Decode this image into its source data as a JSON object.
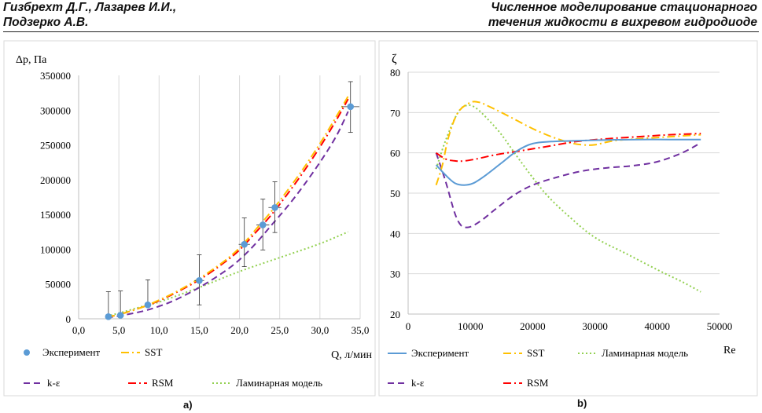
{
  "header": {
    "authors_line1": "Гизбрехт Д.Г., Лазарев И.И.,",
    "authors_line2": "Подзерко А.В.",
    "title_line1": "Численное моделирование стационарного",
    "title_line2": "течения жидкости в вихревом гидродиоде"
  },
  "colors": {
    "experiment": "#5B9BD5",
    "sst": "#FFC000",
    "k_eps": "#7030A0",
    "rsm": "#FF0000",
    "laminar": "#92D050",
    "grid": "#d9d9d9",
    "axis": "#bfbfbf"
  },
  "chart_data": [
    {
      "type": "line",
      "panel_label": "a)",
      "ylabel": "Δр, Па",
      "xlabel": "Q, л/мин",
      "xlim": [
        0,
        35
      ],
      "ylim": [
        0,
        350000
      ],
      "x_ticks": [
        "0,0",
        "5,0",
        "10,0",
        "15,0",
        "20,0",
        "25,0",
        "30,0",
        "35,0"
      ],
      "y_ticks": [
        "0",
        "50000",
        "100000",
        "150000",
        "200000",
        "250000",
        "300000",
        "350000"
      ],
      "grid": "vertical",
      "legend_position": "bottom",
      "legend": [
        "Эксперимент",
        "SST",
        "k-ε",
        "RSM",
        "Ламинарная модель"
      ],
      "experiment": {
        "name": "Эксперимент",
        "points": [
          {
            "x": 3.7,
            "y": 3000,
            "yerr": [
              3000,
              39000
            ],
            "xerr": 0.3
          },
          {
            "x": 5.2,
            "y": 5000,
            "yerr": [
              5000,
              40000
            ],
            "xerr": 0.3
          },
          {
            "x": 8.6,
            "y": 20000,
            "yerr": [
              20000,
              56000
            ],
            "xerr": 0.4
          },
          {
            "x": 15.0,
            "y": 55000,
            "yerr": [
              20000,
              92000
            ],
            "xerr": 0.6
          },
          {
            "x": 20.6,
            "y": 107000,
            "yerr": [
              75000,
              145000
            ],
            "xerr": 0.7
          },
          {
            "x": 22.9,
            "y": 135000,
            "yerr": [
              99000,
              172000
            ],
            "xerr": 0.8
          },
          {
            "x": 24.4,
            "y": 160000,
            "yerr": [
              124000,
              197000
            ],
            "xerr": 0.8
          },
          {
            "x": 33.8,
            "y": 305000,
            "yerr": [
              268000,
              341000
            ],
            "xerr": 1.1
          }
        ]
      },
      "series": [
        {
          "name": "SST",
          "x": [
            3.5,
            5,
            8,
            10,
            12,
            15,
            18,
            20,
            22,
            24,
            26,
            28,
            30,
            32,
            33.5
          ],
          "y": [
            3000,
            6000,
            17000,
            27000,
            38000,
            58000,
            82000,
            102000,
            128000,
            155000,
            185000,
            217000,
            252000,
            290000,
            320000
          ]
        },
        {
          "name": "RSM",
          "x": [
            3.5,
            5,
            8,
            10,
            12,
            15,
            18,
            20,
            22,
            24,
            26,
            28,
            30,
            32,
            33.5
          ],
          "y": [
            3000,
            6000,
            17000,
            26000,
            37000,
            56000,
            80000,
            99000,
            124000,
            150000,
            180000,
            212000,
            247000,
            285000,
            316000
          ]
        },
        {
          "name": "k-ε",
          "x": [
            3.5,
            5,
            8,
            10,
            12,
            15,
            18,
            20,
            22,
            24,
            26,
            28,
            30,
            32,
            33.5
          ],
          "y": [
            2000,
            4000,
            11000,
            18000,
            27000,
            45000,
            67000,
            85000,
            108000,
            135000,
            162000,
            192000,
            225000,
            262000,
            298000
          ]
        },
        {
          "name": "Ламинарная модель",
          "x": [
            3.5,
            5,
            8,
            10,
            15,
            20,
            25,
            30,
            33.5
          ],
          "y": [
            4000,
            8000,
            18000,
            24000,
            45000,
            68000,
            88000,
            108000,
            125000
          ]
        }
      ]
    },
    {
      "type": "line",
      "panel_label": "b)",
      "ylabel": "ζ",
      "xlabel": "Re",
      "xlim": [
        0,
        50000
      ],
      "ylim": [
        20,
        80
      ],
      "x_ticks": [
        "0",
        "10000",
        "20000",
        "30000",
        "40000",
        "50000"
      ],
      "y_ticks": [
        "20",
        "30",
        "40",
        "50",
        "60",
        "70",
        "80"
      ],
      "grid": "horizontal",
      "legend_position": "bottom",
      "legend": [
        "Эксперимент",
        "SST",
        "Ламинарная модель",
        "k-ε",
        "RSM"
      ],
      "series": [
        {
          "name": "Эксперимент",
          "x": [
            4500,
            6000,
            7500,
            9000,
            10500,
            12500,
            15000,
            17500,
            20000,
            23000,
            27000,
            32000,
            37000,
            42000,
            47000
          ],
          "y": [
            57,
            54.5,
            52.5,
            52,
            52.5,
            54.5,
            57.5,
            60.5,
            62.3,
            62.8,
            63,
            63.2,
            63.3,
            63.3,
            63.3
          ]
        },
        {
          "name": "SST",
          "x": [
            4500,
            5500,
            6500,
            8000,
            10000,
            11500,
            13000,
            15000,
            17500,
            20000,
            23000,
            26000,
            28000,
            30000,
            33000,
            37000,
            42000,
            47000
          ],
          "y": [
            52,
            57,
            64,
            70,
            72.5,
            72.5,
            71.5,
            70,
            68,
            66,
            64,
            62.5,
            62,
            62,
            63,
            63.5,
            64,
            64.5
          ]
        },
        {
          "name": "Ламинарная модель",
          "x": [
            4500,
            6000,
            8000,
            9500,
            11000,
            13000,
            15000,
            18000,
            22000,
            26000,
            30000,
            35000,
            40000,
            44000,
            47000
          ],
          "y": [
            56,
            63,
            70,
            71.8,
            71,
            68,
            64.5,
            58,
            50,
            44,
            39,
            35,
            31,
            28,
            25.5
          ]
        },
        {
          "name": "k-ε",
          "x": [
            4500,
            6000,
            7500,
            8500,
            9500,
            10500,
            12000,
            14000,
            17000,
            20000,
            24000,
            28000,
            32000,
            36000,
            40000,
            44000,
            47000
          ],
          "y": [
            60,
            53,
            45,
            42,
            41.5,
            42,
            43.5,
            46,
            49.5,
            52,
            54,
            55.5,
            56.3,
            56.8,
            57.8,
            60,
            62.5
          ]
        },
        {
          "name": "RSM",
          "x": [
            4500,
            6000,
            7500,
            9000,
            11000,
            14000,
            18000,
            22000,
            27000,
            32000,
            37000,
            42000,
            47000
          ],
          "y": [
            60,
            58.5,
            58,
            58,
            58.5,
            59.5,
            60.5,
            61.5,
            62.8,
            63.5,
            64,
            64.5,
            64.8
          ]
        }
      ]
    }
  ]
}
